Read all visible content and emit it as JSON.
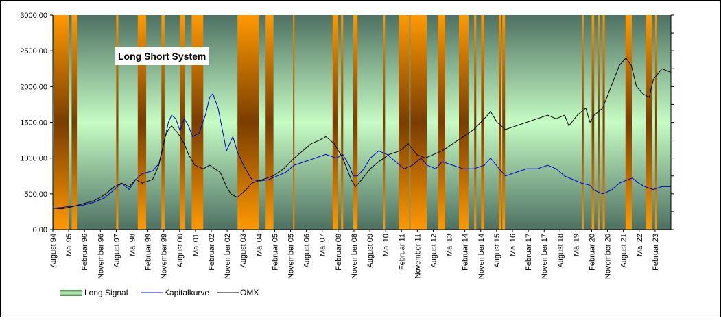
{
  "chart_data": {
    "type": "line",
    "title": "Long Short System",
    "ylim": [
      0,
      3000
    ],
    "xlim": [
      1994.58,
      2023.83
    ],
    "y_ticks": [
      "0,00",
      "500,00",
      "1000,00",
      "1500,00",
      "2000,00",
      "2500,00",
      "3000,00"
    ],
    "y_tick_values": [
      0,
      500,
      1000,
      1500,
      2000,
      2500,
      3000
    ],
    "x_ticks": [
      {
        "label": "August 94",
        "x": 1994.58
      },
      {
        "label": "Mai 95",
        "x": 1995.33
      },
      {
        "label": "Februar 96",
        "x": 1996.08
      },
      {
        "label": "November 96",
        "x": 1996.83
      },
      {
        "label": "August 97",
        "x": 1997.58
      },
      {
        "label": "Mai 98",
        "x": 1998.33
      },
      {
        "label": "Februar 99",
        "x": 1999.08
      },
      {
        "label": "November 99",
        "x": 1999.83
      },
      {
        "label": "August 00",
        "x": 2000.58
      },
      {
        "label": "Mai 01",
        "x": 2001.33
      },
      {
        "label": "Februar 02",
        "x": 2002.08
      },
      {
        "label": "November 02",
        "x": 2002.83
      },
      {
        "label": "August 03",
        "x": 2003.58
      },
      {
        "label": "Mai 04",
        "x": 2004.33
      },
      {
        "label": "Februar 05",
        "x": 2005.08
      },
      {
        "label": "November 05",
        "x": 2005.83
      },
      {
        "label": "August 06",
        "x": 2006.58
      },
      {
        "label": "Mai 07",
        "x": 2007.33
      },
      {
        "label": "Februar 08",
        "x": 2008.08
      },
      {
        "label": "November 08",
        "x": 2008.83
      },
      {
        "label": "August 09",
        "x": 2009.58
      },
      {
        "label": "Mai 10",
        "x": 2010.33
      },
      {
        "label": "Februar 11",
        "x": 2011.08
      },
      {
        "label": "November 11",
        "x": 2011.83
      },
      {
        "label": "August 12",
        "x": 2012.58
      },
      {
        "label": "Mai 13",
        "x": 2013.33
      },
      {
        "label": "Februar 14",
        "x": 2014.08
      },
      {
        "label": "November 14",
        "x": 2014.83
      },
      {
        "label": "August 15",
        "x": 2015.58
      },
      {
        "label": "Mai 16",
        "x": 2016.33
      },
      {
        "label": "Februar 17",
        "x": 2017.08
      },
      {
        "label": "November 17",
        "x": 2017.83
      },
      {
        "label": "August 18",
        "x": 2018.58
      },
      {
        "label": "Mai 19",
        "x": 2019.33
      },
      {
        "label": "Februar 20",
        "x": 2020.08
      },
      {
        "label": "November 20",
        "x": 2020.83
      },
      {
        "label": "August 21",
        "x": 2021.58
      },
      {
        "label": "Mai 22",
        "x": 2022.33
      },
      {
        "label": "Februar 23",
        "x": 2023.08
      }
    ],
    "legend": [
      {
        "name": "Long Signal",
        "kind": "band"
      },
      {
        "name": "Kapitalkurve",
        "kind": "line",
        "color": "#0000cc"
      },
      {
        "name": "OMX",
        "kind": "line",
        "color": "#000000"
      }
    ],
    "legend_position": "bottom-left",
    "long_signal_periods": [
      [
        1994.62,
        1995.33
      ],
      [
        1995.47,
        1995.72
      ],
      [
        1997.58,
        1997.68
      ],
      [
        1998.6,
        1999.0
      ],
      [
        1999.72,
        1999.87
      ],
      [
        2000.6,
        2000.83
      ],
      [
        2001.15,
        2001.7
      ],
      [
        2003.32,
        2004.35
      ],
      [
        2004.65,
        2005.02
      ],
      [
        2005.95,
        2006.0
      ],
      [
        2007.82,
        2008.08
      ],
      [
        2008.22,
        2008.32
      ],
      [
        2008.8,
        2009.0
      ],
      [
        2010.22,
        2010.3
      ],
      [
        2010.95,
        2011.45
      ],
      [
        2011.5,
        2012.28
      ],
      [
        2012.8,
        2013.15
      ],
      [
        2013.8,
        2014.25
      ],
      [
        2014.52,
        2014.62
      ],
      [
        2014.85,
        2015.0
      ],
      [
        2015.68,
        2015.8
      ],
      [
        2015.85,
        2015.98
      ],
      [
        2019.62,
        2019.7
      ],
      [
        2020.08,
        2020.2
      ],
      [
        2020.38,
        2020.45
      ],
      [
        2020.6,
        2020.7
      ],
      [
        2021.68,
        2021.98
      ],
      [
        2022.65,
        2022.92
      ],
      [
        2023.08,
        2023.17
      ]
    ],
    "series": [
      {
        "name": "Kapitalkurve",
        "color": "#0000cc",
        "x": [
          1994.58,
          1995.0,
          1995.5,
          1996.0,
          1996.5,
          1997.0,
          1997.5,
          1997.83,
          1998.2,
          1998.5,
          1998.8,
          1999.3,
          1999.6,
          1999.9,
          2000.05,
          2000.2,
          2000.4,
          2000.6,
          2000.8,
          2001.0,
          2001.2,
          2001.5,
          2001.8,
          2002.0,
          2002.15,
          2002.4,
          2002.6,
          2002.8,
          2002.95,
          2003.1,
          2003.3,
          2003.6,
          2004.0,
          2004.4,
          2004.8,
          2005.2,
          2005.6,
          2006.0,
          2006.5,
          2007.0,
          2007.5,
          2008.0,
          2008.3,
          2008.6,
          2008.8,
          2009.0,
          2009.3,
          2009.6,
          2010.0,
          2010.4,
          2010.8,
          2011.2,
          2011.6,
          2012.0,
          2012.3,
          2012.7,
          2013.0,
          2013.5,
          2014.0,
          2014.5,
          2015.0,
          2015.3,
          2015.7,
          2016.0,
          2016.5,
          2017.0,
          2017.5,
          2018.0,
          2018.4,
          2018.8,
          2019.2,
          2019.6,
          2020.0,
          2020.2,
          2020.6,
          2021.0,
          2021.4,
          2021.8,
          2022.0,
          2022.3,
          2022.6,
          2023.0,
          2023.4,
          2023.83
        ],
        "y": [
          300,
          310,
          330,
          340,
          380,
          440,
          560,
          650,
          560,
          700,
          780,
          820,
          920,
          1300,
          1500,
          1600,
          1550,
          1380,
          1550,
          1450,
          1300,
          1350,
          1600,
          1850,
          1900,
          1700,
          1400,
          1100,
          1200,
          1300,
          1100,
          900,
          700,
          680,
          700,
          750,
          800,
          900,
          950,
          1000,
          1050,
          1000,
          1050,
          900,
          750,
          750,
          850,
          1000,
          1100,
          1050,
          950,
          850,
          900,
          1000,
          900,
          850,
          950,
          900,
          850,
          850,
          900,
          1000,
          850,
          750,
          800,
          850,
          850,
          900,
          850,
          750,
          700,
          650,
          620,
          550,
          500,
          550,
          650,
          700,
          720,
          650,
          600,
          560,
          600,
          600
        ]
      },
      {
        "name": "OMX",
        "color": "#000000",
        "x": [
          1994.58,
          1995.0,
          1995.5,
          1996.0,
          1996.5,
          1997.0,
          1997.5,
          1997.83,
          1998.2,
          1998.5,
          1998.8,
          1999.3,
          1999.6,
          1999.9,
          2000.05,
          2000.2,
          2000.5,
          2000.8,
          2001.0,
          2001.3,
          2001.7,
          2002.0,
          2002.5,
          2002.8,
          2003.0,
          2003.3,
          2003.7,
          2004.0,
          2004.5,
          2005.0,
          2005.5,
          2006.0,
          2006.4,
          2006.8,
          2007.2,
          2007.5,
          2007.9,
          2008.3,
          2008.7,
          2008.9,
          2009.2,
          2009.6,
          2010.0,
          2010.5,
          2011.0,
          2011.4,
          2011.8,
          2012.2,
          2012.6,
          2013.0,
          2013.5,
          2014.0,
          2014.5,
          2015.0,
          2015.3,
          2015.6,
          2016.0,
          2016.5,
          2017.0,
          2017.5,
          2018.0,
          2018.4,
          2018.8,
          2019.0,
          2019.4,
          2019.8,
          2020.0,
          2020.2,
          2020.6,
          2021.0,
          2021.4,
          2021.7,
          2021.95,
          2022.2,
          2022.5,
          2022.8,
          2023.0,
          2023.4,
          2023.83
        ],
        "y": [
          300,
          290,
          320,
          360,
          400,
          480,
          600,
          650,
          600,
          700,
          650,
          700,
          900,
          1300,
          1400,
          1450,
          1350,
          1200,
          1050,
          900,
          850,
          900,
          800,
          600,
          500,
          450,
          550,
          650,
          700,
          750,
          850,
          1000,
          1100,
          1200,
          1250,
          1300,
          1200,
          1000,
          700,
          600,
          700,
          850,
          950,
          1050,
          1100,
          1200,
          1050,
          1000,
          1050,
          1100,
          1200,
          1300,
          1400,
          1550,
          1650,
          1500,
          1400,
          1450,
          1500,
          1550,
          1600,
          1550,
          1600,
          1450,
          1600,
          1700,
          1500,
          1600,
          1700,
          2000,
          2300,
          2400,
          2300,
          2000,
          1900,
          1850,
          2100,
          2250,
          2200
        ]
      }
    ]
  }
}
